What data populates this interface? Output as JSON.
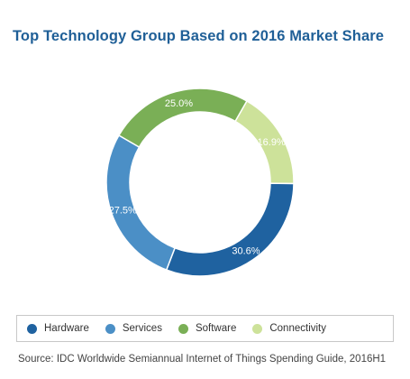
{
  "chart_data": {
    "type": "pie",
    "subtype": "donut",
    "title": "Top Technology Group Based on 2016 Market Share",
    "legend_position": "bottom",
    "slices": [
      {
        "name": "Connectivity",
        "value": 16.9,
        "label": "16.9%",
        "color": "#cde29a"
      },
      {
        "name": "Hardware",
        "value": 30.6,
        "label": "30.6%",
        "color": "#1f62a0"
      },
      {
        "name": "Services",
        "value": 27.5,
        "label": "27.5%",
        "color": "#4b8fc6"
      },
      {
        "name": "Software",
        "value": 25.0,
        "label": "25.0%",
        "color": "#7aaf56"
      }
    ],
    "legend": [
      {
        "name": "Hardware",
        "color": "#1f62a0"
      },
      {
        "name": "Services",
        "color": "#4b8fc6"
      },
      {
        "name": "Software",
        "color": "#7aaf56"
      },
      {
        "name": "Connectivity",
        "color": "#cde29a"
      }
    ]
  },
  "source": "Source: IDC Worldwide Semiannual Internet of Things Spending Guide, 2016H1"
}
